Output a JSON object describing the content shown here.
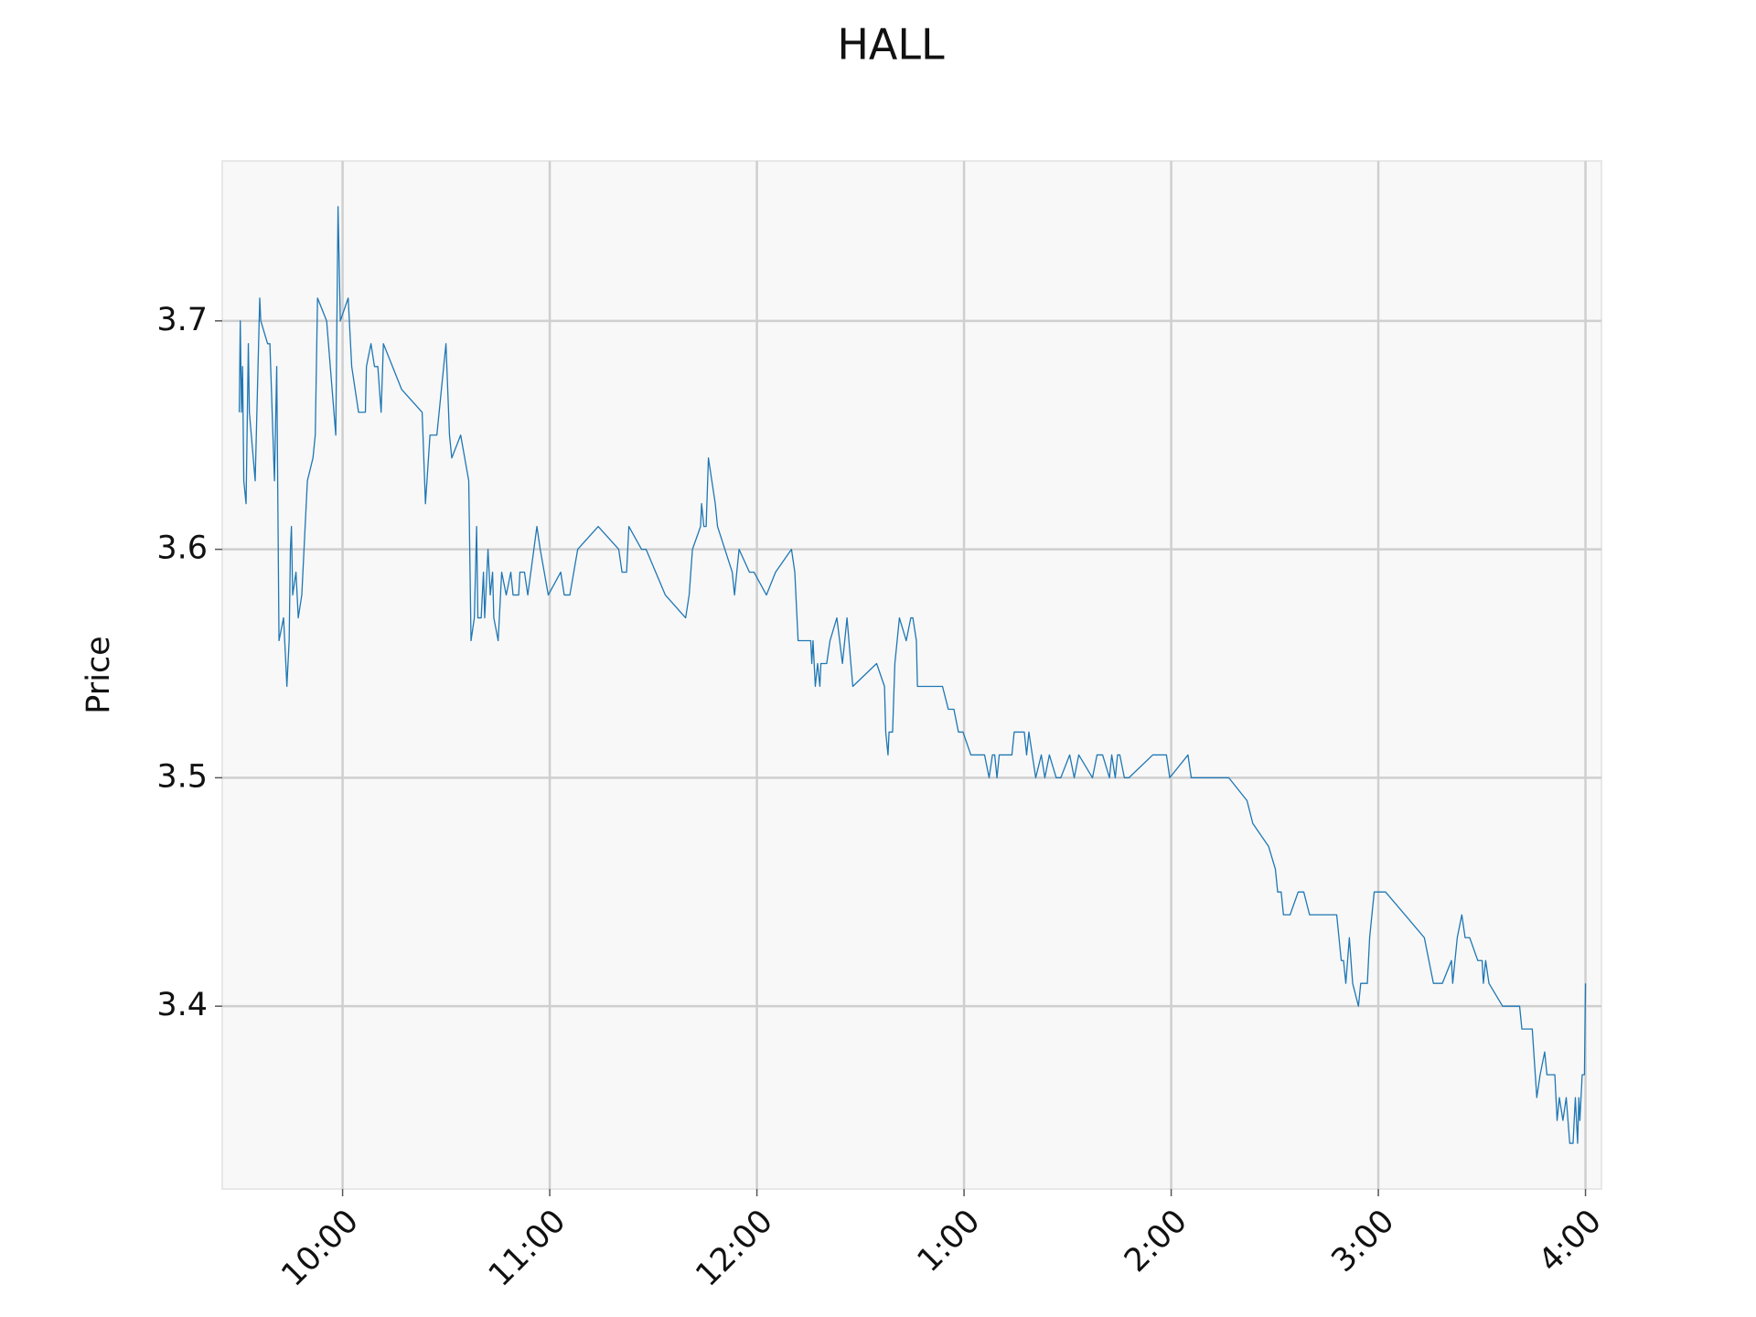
{
  "chart_data": {
    "type": "line",
    "title": "HALL",
    "y_label": "Price",
    "color": "#1f77b4",
    "grid": true,
    "xlim": [
      9.419,
      16.077
    ],
    "ylim": [
      3.32,
      3.77
    ],
    "xticks": [
      {
        "value": 10,
        "label": "10:00"
      },
      {
        "value": 11,
        "label": "11:00"
      },
      {
        "value": 12,
        "label": "12:00"
      },
      {
        "value": 13,
        "label": "1:00"
      },
      {
        "value": 14,
        "label": "2:00"
      },
      {
        "value": 15,
        "label": "3:00"
      },
      {
        "value": 16,
        "label": "4:00"
      }
    ],
    "yticks": [
      3.4,
      3.5,
      3.6,
      3.7
    ],
    "x": [
      9.501,
      9.506,
      9.512,
      9.517,
      9.523,
      9.534,
      9.545,
      9.55,
      9.578,
      9.6,
      9.605,
      9.638,
      9.649,
      9.671,
      9.682,
      9.693,
      9.715,
      9.726,
      9.731,
      9.742,
      9.748,
      9.753,
      9.759,
      9.775,
      9.786,
      9.803,
      9.83,
      9.857,
      9.868,
      9.879,
      9.923,
      9.967,
      9.978,
      9.989,
      10.027,
      10.044,
      10.077,
      10.11,
      10.115,
      10.137,
      10.154,
      10.17,
      10.186,
      10.197,
      10.285,
      10.384,
      10.4,
      10.422,
      10.455,
      10.499,
      10.516,
      10.527,
      10.57,
      10.609,
      10.62,
      10.636,
      10.647,
      10.653,
      10.669,
      10.68,
      10.686,
      10.702,
      10.713,
      10.724,
      10.73,
      10.751,
      10.768,
      10.79,
      10.812,
      10.823,
      10.85,
      10.856,
      10.878,
      10.894,
      10.938,
      10.954,
      10.993,
      11.053,
      11.07,
      11.097,
      11.135,
      11.234,
      11.333,
      11.349,
      11.371,
      11.382,
      11.443,
      11.465,
      11.558,
      11.656,
      11.673,
      11.689,
      11.728,
      11.733,
      11.744,
      11.755,
      11.766,
      11.799,
      11.81,
      11.881,
      11.892,
      11.914,
      11.964,
      11.986,
      12.046,
      12.09,
      12.167,
      12.183,
      12.199,
      12.26,
      12.265,
      12.271,
      12.282,
      12.293,
      12.304,
      12.309,
      12.337,
      12.353,
      12.386,
      12.413,
      12.435,
      12.463,
      12.578,
      12.616,
      12.622,
      12.633,
      12.638,
      12.655,
      12.666,
      12.688,
      12.721,
      12.743,
      12.753,
      12.77,
      12.775,
      12.896,
      12.924,
      12.951,
      12.973,
      12.995,
      13.033,
      13.099,
      13.121,
      13.137,
      13.148,
      13.159,
      13.17,
      13.231,
      13.242,
      13.291,
      13.302,
      13.313,
      13.346,
      13.373,
      13.39,
      13.412,
      13.445,
      13.467,
      13.51,
      13.532,
      13.554,
      13.62,
      13.642,
      13.669,
      13.702,
      13.713,
      13.73,
      13.741,
      13.752,
      13.774,
      13.796,
      13.911,
      13.977,
      13.993,
      14.081,
      14.097,
      14.278,
      14.366,
      14.394,
      14.47,
      14.503,
      14.514,
      14.531,
      14.542,
      14.574,
      14.613,
      14.64,
      14.668,
      14.799,
      14.821,
      14.832,
      14.843,
      14.86,
      14.876,
      14.904,
      14.915,
      14.947,
      14.958,
      14.969,
      14.98,
      15.035,
      15.222,
      15.266,
      15.309,
      15.353,
      15.359,
      15.381,
      15.403,
      15.419,
      15.441,
      15.48,
      15.501,
      15.507,
      15.518,
      15.534,
      15.6,
      15.682,
      15.693,
      15.743,
      15.765,
      15.781,
      15.803,
      15.814,
      15.852,
      15.863,
      15.874,
      15.891,
      15.907,
      15.924,
      15.94,
      15.951,
      15.962,
      15.968,
      15.973,
      15.984,
      15.995,
      16.0
    ],
    "values": [
      3.66,
      3.7,
      3.66,
      3.68,
      3.63,
      3.62,
      3.69,
      3.66,
      3.63,
      3.71,
      3.7,
      3.69,
      3.69,
      3.63,
      3.68,
      3.56,
      3.57,
      3.55,
      3.54,
      3.56,
      3.6,
      3.61,
      3.58,
      3.59,
      3.57,
      3.58,
      3.63,
      3.64,
      3.65,
      3.71,
      3.7,
      3.65,
      3.75,
      3.7,
      3.71,
      3.68,
      3.66,
      3.66,
      3.68,
      3.69,
      3.68,
      3.68,
      3.66,
      3.69,
      3.67,
      3.66,
      3.62,
      3.65,
      3.65,
      3.69,
      3.65,
      3.64,
      3.65,
      3.63,
      3.56,
      3.57,
      3.61,
      3.57,
      3.57,
      3.59,
      3.57,
      3.6,
      3.58,
      3.59,
      3.57,
      3.56,
      3.59,
      3.58,
      3.59,
      3.58,
      3.58,
      3.59,
      3.59,
      3.58,
      3.61,
      3.6,
      3.58,
      3.59,
      3.58,
      3.58,
      3.6,
      3.61,
      3.6,
      3.59,
      3.59,
      3.61,
      3.6,
      3.6,
      3.58,
      3.57,
      3.58,
      3.6,
      3.61,
      3.62,
      3.61,
      3.61,
      3.64,
      3.62,
      3.61,
      3.59,
      3.58,
      3.6,
      3.59,
      3.59,
      3.58,
      3.59,
      3.6,
      3.59,
      3.56,
      3.56,
      3.55,
      3.56,
      3.54,
      3.55,
      3.54,
      3.55,
      3.55,
      3.56,
      3.57,
      3.55,
      3.57,
      3.54,
      3.55,
      3.54,
      3.52,
      3.51,
      3.52,
      3.52,
      3.55,
      3.57,
      3.56,
      3.57,
      3.57,
      3.56,
      3.54,
      3.54,
      3.53,
      3.53,
      3.52,
      3.52,
      3.51,
      3.51,
      3.5,
      3.51,
      3.51,
      3.5,
      3.51,
      3.51,
      3.52,
      3.52,
      3.51,
      3.52,
      3.5,
      3.51,
      3.5,
      3.51,
      3.5,
      3.5,
      3.51,
      3.5,
      3.51,
      3.5,
      3.51,
      3.51,
      3.5,
      3.51,
      3.5,
      3.51,
      3.51,
      3.5,
      3.5,
      3.51,
      3.51,
      3.5,
      3.51,
      3.5,
      3.5,
      3.49,
      3.48,
      3.47,
      3.46,
      3.45,
      3.45,
      3.44,
      3.44,
      3.45,
      3.45,
      3.44,
      3.44,
      3.42,
      3.42,
      3.41,
      3.43,
      3.41,
      3.4,
      3.41,
      3.41,
      3.43,
      3.44,
      3.45,
      3.45,
      3.43,
      3.41,
      3.41,
      3.42,
      3.41,
      3.43,
      3.44,
      3.43,
      3.43,
      3.42,
      3.42,
      3.41,
      3.42,
      3.41,
      3.4,
      3.4,
      3.39,
      3.39,
      3.36,
      3.37,
      3.38,
      3.37,
      3.37,
      3.35,
      3.36,
      3.35,
      3.36,
      3.34,
      3.34,
      3.36,
      3.34,
      3.36,
      3.35,
      3.37,
      3.37,
      3.41
    ]
  }
}
